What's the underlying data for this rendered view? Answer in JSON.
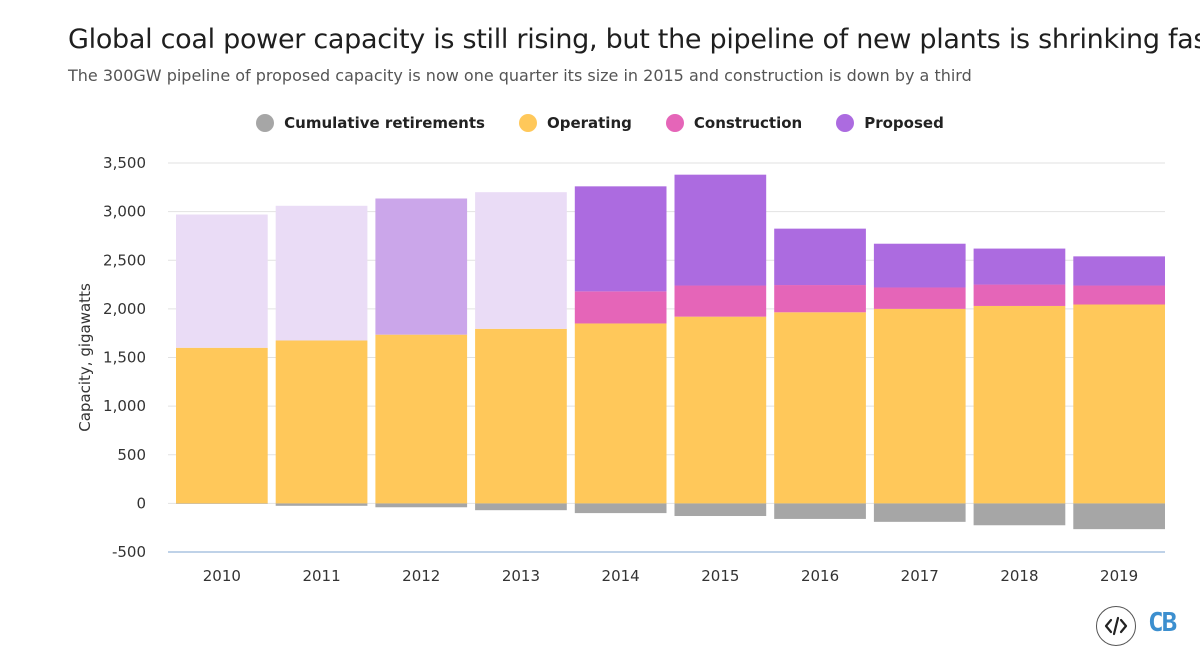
{
  "chart_data": {
    "type": "bar",
    "title": "Global coal power capacity is still rising, but the pipeline of new plants is shrinking fast",
    "subtitle": "The 300GW pipeline of proposed capacity is now one quarter its size in 2015 and construction is down by a third",
    "ylabel": "Capacity, gigawatts",
    "xlabel": "",
    "ylim": [
      -500,
      3500
    ],
    "yticks": [
      -500,
      0,
      500,
      1000,
      1500,
      2000,
      2500,
      3000,
      3500
    ],
    "ytick_labels": [
      "-500",
      "0",
      "500",
      "1,000",
      "1,500",
      "2,000",
      "2,500",
      "3,000",
      "3,500"
    ],
    "grid": true,
    "legend_position": "top-center",
    "stacked": true,
    "categories": [
      "2010",
      "2011",
      "2012",
      "2013",
      "2014",
      "2015",
      "2016",
      "2017",
      "2018",
      "2019"
    ],
    "series": [
      {
        "name": "Cumulative retirements",
        "color": "#a6a6a6",
        "values": [
          -5,
          -25,
          -40,
          -70,
          -100,
          -130,
          -160,
          -190,
          -225,
          -265
        ]
      },
      {
        "name": "Operating",
        "color": "#ffc85a",
        "values": [
          1600,
          1675,
          1735,
          1795,
          1850,
          1920,
          1965,
          2000,
          2030,
          2045
        ]
      },
      {
        "name": "Construction",
        "color": "#e565b8",
        "values": [
          0,
          0,
          0,
          0,
          330,
          320,
          280,
          220,
          220,
          195
        ]
      },
      {
        "name": "Proposed",
        "color": "#ac6be0",
        "values": [
          1370,
          1385,
          1400,
          1405,
          1080,
          1140,
          580,
          450,
          370,
          300
        ]
      }
    ],
    "highlighted_categories": [
      "2012",
      "2014",
      "2015",
      "2016",
      "2017",
      "2018",
      "2019"
    ],
    "faded_proposed_color": "#eadcf6",
    "mid_proposed_color": "#cba6ea"
  },
  "footer": {
    "embed_icon": "code-brackets-icon",
    "logo_text": "CB",
    "logo_color": "#3c8fcf"
  }
}
